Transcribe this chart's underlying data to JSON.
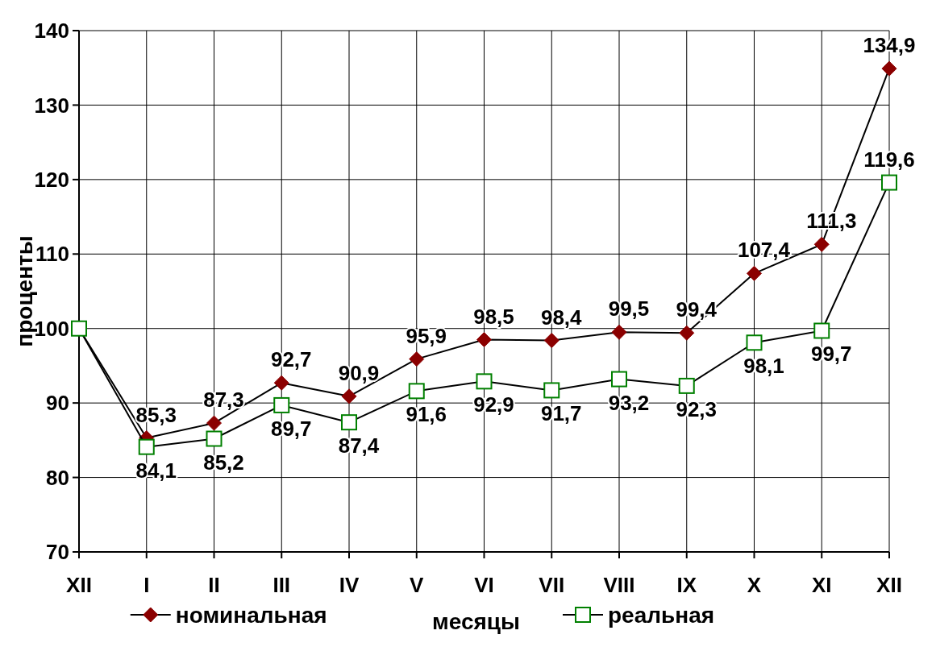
{
  "chart_data": {
    "type": "line",
    "xlabel": "месяцы",
    "ylabel": "проценты",
    "categories": [
      "XII",
      "I",
      "II",
      "III",
      "IV",
      "V",
      "VI",
      "VII",
      "VIII",
      "IX",
      "X",
      "XI",
      "XII"
    ],
    "series": [
      {
        "name": "номинальная",
        "color": "#8b0000",
        "marker": "diamond",
        "values": [
          100,
          85.3,
          87.3,
          92.7,
          90.9,
          95.9,
          98.5,
          98.4,
          99.5,
          99.4,
          107.4,
          111.3,
          134.9
        ],
        "value_labels": [
          null,
          "85,3",
          "87,3",
          "92,7",
          "90,9",
          "95,9",
          "98,5",
          "98,4",
          "99,5",
          "99,4",
          "107,4",
          "111,3",
          "134,9"
        ]
      },
      {
        "name": "реальная",
        "color": "#008000",
        "marker": "square",
        "values": [
          100,
          84.1,
          85.2,
          89.7,
          87.4,
          91.6,
          92.9,
          91.7,
          93.2,
          92.3,
          98.1,
          99.7,
          119.6
        ],
        "value_labels": [
          null,
          "84,1",
          "85,2",
          "89,7",
          "87,4",
          "91,6",
          "92,9",
          "91,7",
          "93,2",
          "92,3",
          "98,1",
          "99,7",
          "119,6"
        ]
      }
    ],
    "ylim": [
      70,
      140
    ],
    "yticks": [
      70,
      80,
      90,
      100,
      110,
      120,
      130,
      140
    ],
    "grid": true,
    "legend": "bottom"
  }
}
